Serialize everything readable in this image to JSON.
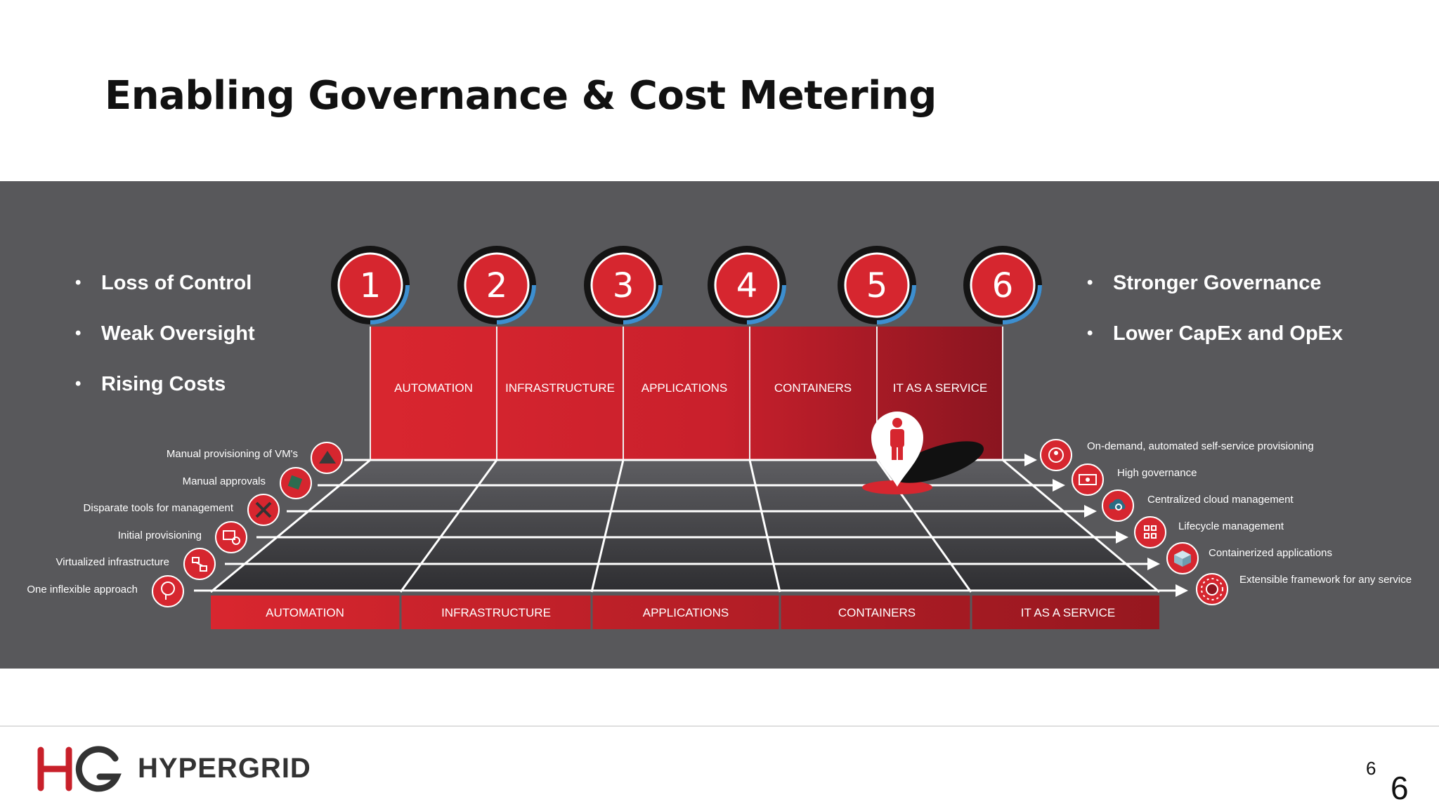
{
  "slide": {
    "title": "Enabling Governance & Cost Metering",
    "page_number": "6",
    "page_number_large": "6"
  },
  "left_bullets": [
    "Loss of Control",
    "Weak Oversight",
    "Rising Costs"
  ],
  "right_bullets": [
    "Stronger Governance",
    "Lower CapEx and OpEx"
  ],
  "steps": [
    {
      "number": "1"
    },
    {
      "number": "2"
    },
    {
      "number": "3"
    },
    {
      "number": "4"
    },
    {
      "number": "5"
    },
    {
      "number": "6"
    }
  ],
  "wall_labels": [
    "AUTOMATION",
    "INFRASTRUCTURE",
    "APPLICATIONS",
    "CONTAINERS",
    "IT AS A SERVICE"
  ],
  "floor_labels": [
    "AUTOMATION",
    "INFRASTRUCTURE",
    "APPLICATIONS",
    "CONTAINERS",
    "IT AS A SERVICE"
  ],
  "left_rows": [
    {
      "label": "Manual provisioning of VM's",
      "icon": "vm-box-icon"
    },
    {
      "label": "Manual approvals",
      "icon": "stamp-icon"
    },
    {
      "label": "Disparate tools for management",
      "icon": "tools-icon"
    },
    {
      "label": "Initial provisioning",
      "icon": "provisioning-gear-icon"
    },
    {
      "label": "Virtualized infrastructure",
      "icon": "network-icon"
    },
    {
      "label": "One inflexible approach",
      "icon": "head-icon"
    }
  ],
  "right_rows": [
    {
      "label": "On-demand, automated self-service provisioning",
      "icon": "self-service-icon"
    },
    {
      "label": "High governance",
      "icon": "governance-icon"
    },
    {
      "label": "Centralized cloud management",
      "icon": "cloud-gear-icon"
    },
    {
      "label": "Lifecycle management",
      "icon": "lifecycle-icon"
    },
    {
      "label": "Containerized applications",
      "icon": "container-box-icon"
    },
    {
      "label": "Extensible framework for any service",
      "icon": "framework-icon"
    }
  ],
  "brand": {
    "name": "HYPERGRID",
    "logo_icon": "hg-logo-icon"
  },
  "colors": {
    "red": "#d6262f",
    "dark_red": "#8e1520",
    "panel": "#58585b",
    "blue_ring": "#3d8fd0"
  }
}
